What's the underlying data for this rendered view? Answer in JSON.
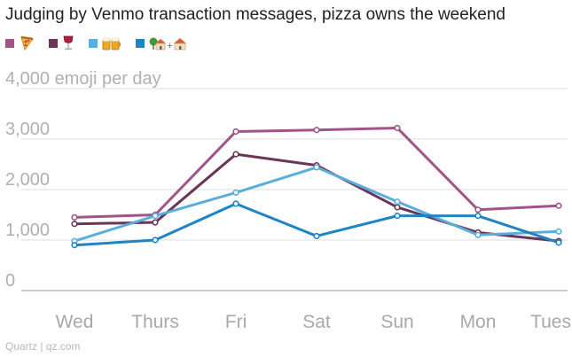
{
  "title": "Judging by Venmo transaction messages, pizza owns the weekend",
  "source": "Quartz | qz.com",
  "legend": [
    {
      "color": "#a0548a",
      "icon": "pizza-icon"
    },
    {
      "color": "#6b3558",
      "icon": "wine-glass-icon"
    },
    {
      "color": "#5aaedc",
      "icon": "beer-mugs-icon"
    },
    {
      "color": "#1f84c6",
      "icon": "tree-house-plus-house-icon",
      "text": "+"
    }
  ],
  "chart_data": {
    "type": "line",
    "ylabel": "4,000 emoji per day",
    "categories": [
      "Wed",
      "Thurs",
      "Fri",
      "Sat",
      "Sun",
      "Mon",
      "Tues"
    ],
    "ylim": [
      0,
      4000
    ],
    "yticks": [
      "0",
      "1,000",
      "2,000",
      "3,000"
    ],
    "grid": true,
    "series": [
      {
        "icon": "pizza",
        "color": "#a0548a",
        "values": [
          1450,
          1500,
          3150,
          3180,
          3220,
          1600,
          1680
        ]
      },
      {
        "icon": "wine",
        "color": "#6b3558",
        "values": [
          1320,
          1350,
          2700,
          2480,
          1650,
          1150,
          980
        ]
      },
      {
        "icon": "beer",
        "color": "#5aaedc",
        "values": [
          980,
          1480,
          1940,
          2440,
          1760,
          1100,
          1170
        ]
      },
      {
        "icon": "house",
        "color": "#1f84c6",
        "values": [
          900,
          1000,
          1720,
          1080,
          1480,
          1480,
          950
        ]
      }
    ]
  }
}
